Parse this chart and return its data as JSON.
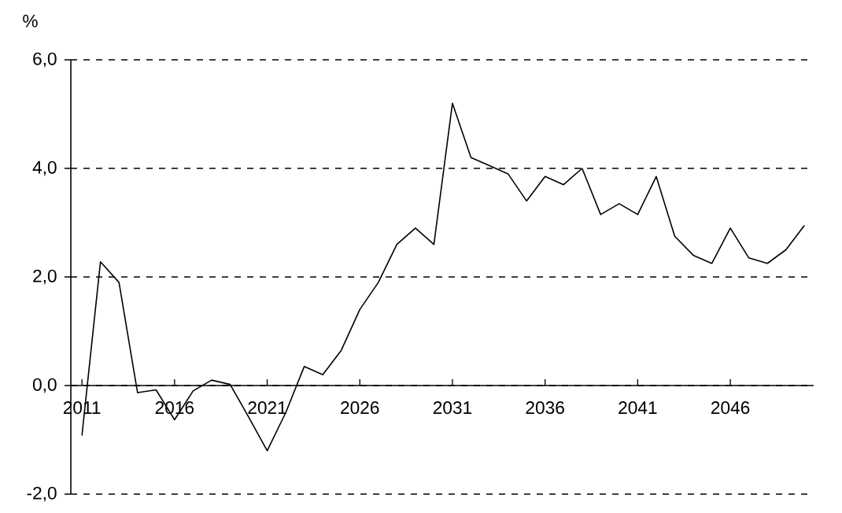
{
  "chart_data": {
    "type": "line",
    "ylabel": "%",
    "x": [
      2011,
      2012,
      2013,
      2014,
      2015,
      2016,
      2017,
      2018,
      2019,
      2020,
      2021,
      2022,
      2023,
      2024,
      2025,
      2026,
      2027,
      2028,
      2029,
      2030,
      2031,
      2032,
      2033,
      2034,
      2035,
      2036,
      2037,
      2038,
      2039,
      2040,
      2041,
      2042,
      2043,
      2044,
      2045,
      2046,
      2047,
      2048,
      2049,
      2050
    ],
    "values": [
      -0.92,
      2.28,
      1.9,
      -0.13,
      -0.08,
      -0.63,
      -0.1,
      0.1,
      0.02,
      -0.58,
      -1.2,
      -0.5,
      0.35,
      0.2,
      0.65,
      1.4,
      1.9,
      2.6,
      2.9,
      2.6,
      5.2,
      4.2,
      4.05,
      3.9,
      3.4,
      3.85,
      3.7,
      4.0,
      3.15,
      3.35,
      3.15,
      3.85,
      2.75,
      2.4,
      2.25,
      2.9,
      2.35,
      2.25,
      2.5,
      2.95
    ],
    "color": "#000000",
    "marker": "none",
    "line_style": "solid",
    "grid": "y",
    "xlim": [
      2010.4,
      2050.5
    ],
    "xticks": [
      2011,
      2016,
      2021,
      2026,
      2031,
      2036,
      2041,
      2046
    ],
    "ylim": [
      -2,
      6
    ],
    "yticks": [
      {
        "value": -2,
        "label": "-2,0"
      },
      {
        "value": 0,
        "label": "0,0"
      },
      {
        "value": 2,
        "label": "2,0"
      },
      {
        "value": 4,
        "label": "4,0"
      },
      {
        "value": 6,
        "label": "6,0"
      }
    ]
  }
}
